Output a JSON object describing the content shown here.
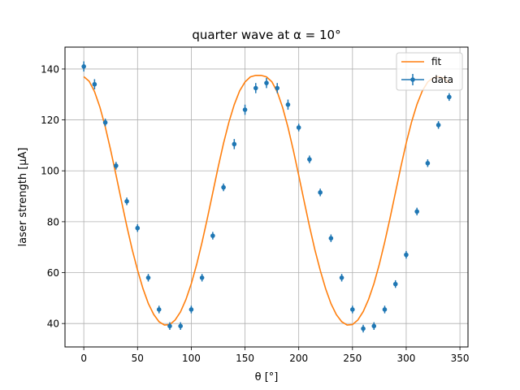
{
  "chart_data": {
    "type": "scatter",
    "title": "quarter wave at α = 10°",
    "xlabel": "θ [°]",
    "ylabel": "laser strength [μA]",
    "xlim": [
      -17.5,
      357.5
    ],
    "ylim": [
      30.8,
      148.6
    ],
    "xticks": [
      0,
      50,
      100,
      150,
      200,
      250,
      300,
      350
    ],
    "yticks": [
      40,
      60,
      80,
      100,
      120,
      140
    ],
    "grid": true,
    "legend_position": "top-right",
    "series": [
      {
        "name": "data",
        "kind": "errorbar",
        "color": "#1f77b4",
        "x": [
          0,
          10,
          20,
          30,
          40,
          50,
          60,
          70,
          80,
          90,
          100,
          110,
          120,
          130,
          140,
          150,
          160,
          170,
          180,
          190,
          200,
          210,
          220,
          230,
          240,
          250,
          260,
          270,
          280,
          290,
          300,
          310,
          320,
          330,
          340
        ],
        "y": [
          141,
          134,
          119,
          102,
          88,
          77.5,
          58,
          45.5,
          39,
          39,
          45.5,
          58,
          74.5,
          93.5,
          110.5,
          124,
          132.5,
          134.5,
          132.5,
          126,
          117,
          104.5,
          91.5,
          73.5,
          58,
          45.5,
          38,
          39,
          45.5,
          55.5,
          67,
          84,
          103,
          118,
          129
        ],
        "yerr": [
          2,
          2,
          1.5,
          1.5,
          1.5,
          1.5,
          1.5,
          1.5,
          1.5,
          1.5,
          1.5,
          1.5,
          1.5,
          1.5,
          2,
          2,
          2,
          2,
          2,
          2,
          1.5,
          1.5,
          1.5,
          1.5,
          1.5,
          1.5,
          1.5,
          1.5,
          1.5,
          1.5,
          1.5,
          1.5,
          1.5,
          1.5,
          1.5
        ]
      },
      {
        "name": "fit",
        "kind": "line",
        "color": "#ff7f0e",
        "x": [
          0,
          5,
          10,
          15,
          20,
          25,
          30,
          35,
          40,
          45,
          50,
          55,
          60,
          65,
          70,
          75,
          80,
          85,
          90,
          95,
          100,
          105,
          110,
          115,
          120,
          125,
          130,
          135,
          140,
          145,
          150,
          155,
          160,
          165,
          170,
          175,
          180,
          185,
          190,
          195,
          200,
          205,
          210,
          215,
          220,
          225,
          230,
          235,
          240,
          245,
          250,
          255,
          260,
          265,
          270,
          275,
          280,
          285,
          290,
          295,
          300,
          305,
          310,
          315,
          320,
          325,
          330,
          335,
          340
        ],
        "y": [
          137.0,
          135.2,
          131.1,
          125.0,
          117.2,
          108.1,
          98.3,
          88.2,
          78.3,
          69.1,
          61.0,
          53.8,
          47.9,
          43.6,
          40.7,
          39.4,
          39.6,
          41.4,
          44.6,
          49.4,
          55.6,
          63.2,
          71.9,
          81.4,
          91.4,
          101.4,
          110.8,
          119.1,
          126.0,
          131.4,
          134.9,
          136.9,
          137.5,
          137.5,
          136.9,
          135.0,
          131.0,
          124.9,
          117.1,
          108.0,
          98.2,
          88.1,
          78.2,
          69.0,
          60.9,
          53.7,
          47.8,
          43.5,
          40.7,
          39.4,
          39.6,
          41.4,
          44.7,
          49.5,
          55.7,
          63.3,
          72.0,
          81.5,
          91.5,
          101.5,
          110.9,
          119.2,
          126.1,
          131.4,
          134.9,
          136.5,
          137.0,
          136.4,
          134.5
        ]
      }
    ]
  }
}
